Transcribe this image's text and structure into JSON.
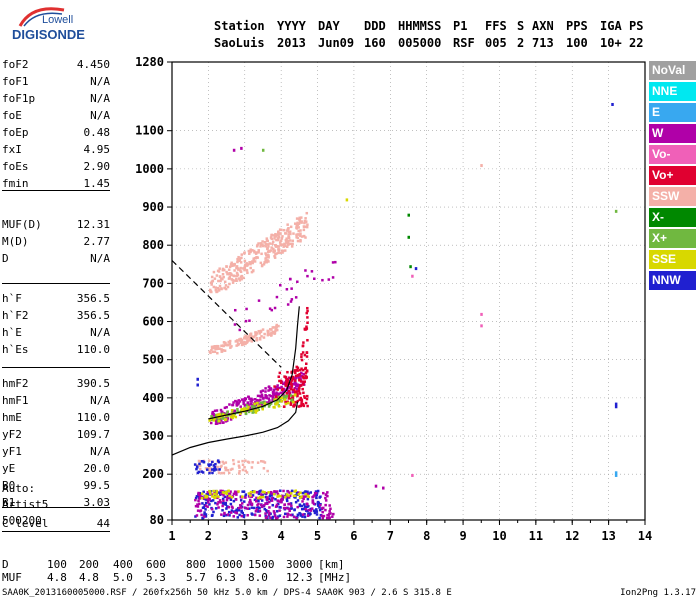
{
  "logo": {
    "line1": "Lowell",
    "line2": "DIGISONDE"
  },
  "header": {
    "cols": [
      {
        "top": "Station",
        "bottom": "SaoLuis"
      },
      {
        "top": "YYYY",
        "bottom": "2013"
      },
      {
        "top": "DAY",
        "bottom": "Jun09"
      },
      {
        "top": "DDD",
        "bottom": "160"
      },
      {
        "top": "HHMMSS",
        "bottom": "005000"
      },
      {
        "top": "P1",
        "bottom": "RSF"
      },
      {
        "top": "FFS",
        "bottom": "005"
      },
      {
        "top": "S",
        "bottom": "2"
      },
      {
        "top": "AXN",
        "bottom": "713"
      },
      {
        "top": "PPS",
        "bottom": "100"
      },
      {
        "top": "IGA",
        "bottom": "10+"
      },
      {
        "top": "PS",
        "bottom": "22"
      }
    ]
  },
  "params": [
    {
      "name": "foF2",
      "value": "4.450"
    },
    {
      "name": "foF1",
      "value": "N/A"
    },
    {
      "name": "foF1p",
      "value": "N/A"
    },
    {
      "name": "foE",
      "value": "N/A"
    },
    {
      "name": "foEp",
      "value": "0.48"
    },
    {
      "name": "fxI",
      "value": "4.95"
    },
    {
      "name": "foEs",
      "value": "2.90"
    },
    {
      "name": "fmin",
      "value": "1.45"
    },
    {
      "name": "MUF(D)",
      "value": "12.31"
    },
    {
      "name": "M(D)",
      "value": "2.77"
    },
    {
      "name": "D",
      "value": "N/A"
    },
    {
      "name": "h`F",
      "value": "356.5"
    },
    {
      "name": "h`F2",
      "value": "356.5"
    },
    {
      "name": "h`E",
      "value": "N/A"
    },
    {
      "name": "h`Es",
      "value": "110.0"
    },
    {
      "name": "hmF2",
      "value": "390.5"
    },
    {
      "name": "hmF1",
      "value": "N/A"
    },
    {
      "name": "hmE",
      "value": "110.0"
    },
    {
      "name": "yF2",
      "value": "109.7"
    },
    {
      "name": "yF1",
      "value": "N/A"
    },
    {
      "name": "yE",
      "value": "20.0"
    },
    {
      "name": "B0",
      "value": "99.5"
    },
    {
      "name": "B1",
      "value": "3.03"
    },
    {
      "name": "C-level",
      "value": "44"
    }
  ],
  "auto": {
    "label": "Auto:",
    "artist": "Artist5",
    "version": "500200"
  },
  "legend": [
    {
      "label": "NoVal",
      "color": "#a0a0a0"
    },
    {
      "label": "NNE",
      "color": "#00e8f0"
    },
    {
      "label": "E",
      "color": "#38a8f0"
    },
    {
      "label": "W",
      "color": "#b000a8"
    },
    {
      "label": "Vo-",
      "color": "#f060b8"
    },
    {
      "label": "Vo+",
      "color": "#e00030"
    },
    {
      "label": "SSW",
      "color": "#f4b0a8"
    },
    {
      "label": "X-",
      "color": "#008800"
    },
    {
      "label": "X+",
      "color": "#70b840"
    },
    {
      "label": "SSE",
      "color": "#d8d800"
    },
    {
      "label": "NNW",
      "color": "#2020d0"
    }
  ],
  "footer": {
    "d_label": "D",
    "d_values": [
      "100",
      "200",
      "400",
      "600",
      "800",
      "1000",
      "1500",
      "3000"
    ],
    "d_unit": "[km]",
    "muf_label": "MUF",
    "muf_values": [
      "4.8",
      "4.8",
      "5.0",
      "5.3",
      "5.7",
      "6.3",
      "8.0",
      "12.3"
    ],
    "muf_unit": "[MHz]",
    "bottom_line": "SAA0K_2013160005000.RSF / 260fx256h 50 kHz 5.0 km / DPS-4 SAA0K 903 / 2.6 S 315.8 E",
    "version": "Ion2Png 1.3.17"
  },
  "chart_data": {
    "type": "scatter",
    "xlim": [
      1,
      14
    ],
    "ylim": [
      80,
      1280
    ],
    "x_ticks": [
      1,
      2,
      3,
      4,
      5,
      6,
      7,
      8,
      9,
      10,
      11,
      12,
      13,
      14
    ],
    "y_ticks": [
      80,
      200,
      300,
      400,
      500,
      600,
      700,
      800,
      900,
      1000,
      1100,
      1280
    ],
    "grid": "dotted",
    "profile_curve": [
      [
        1.0,
        250
      ],
      [
        1.5,
        270
      ],
      [
        2.0,
        283
      ],
      [
        2.5,
        292
      ],
      [
        3.0,
        300
      ],
      [
        3.5,
        310
      ],
      [
        3.9,
        322
      ],
      [
        4.2,
        340
      ],
      [
        4.4,
        362
      ],
      [
        4.45,
        390
      ]
    ],
    "trace_curve": [
      [
        2.0,
        345
      ],
      [
        2.5,
        355
      ],
      [
        3.0,
        365
      ],
      [
        3.5,
        378
      ],
      [
        3.9,
        395
      ],
      [
        4.15,
        420
      ],
      [
        4.3,
        460
      ],
      [
        4.4,
        530
      ],
      [
        4.45,
        590
      ],
      [
        4.5,
        640
      ]
    ],
    "dashed_line": [
      [
        1.0,
        760
      ],
      [
        4.0,
        480
      ]
    ],
    "clusters": [
      {
        "class": "SSW",
        "color": "#f4b0a8",
        "x": [
          2.0,
          4.7
        ],
        "y": [
          680,
          900
        ],
        "density": 340,
        "dir": 1
      },
      {
        "class": "SSW",
        "color": "#f4b0a8",
        "x": [
          2.0,
          3.9
        ],
        "y": [
          520,
          600
        ],
        "density": 140,
        "dir": 1
      },
      {
        "class": "W",
        "color": "#b000a8",
        "x": [
          2.0,
          4.6
        ],
        "y": [
          335,
          480
        ],
        "density": 260,
        "dir": 1
      },
      {
        "class": "Vo+",
        "color": "#e00030",
        "x": [
          3.6,
          4.7
        ],
        "y": [
          380,
          680
        ],
        "density": 160,
        "dir": 2
      },
      {
        "class": "X+",
        "color": "#70b840",
        "x": [
          2.0,
          4.3
        ],
        "y": [
          340,
          420
        ],
        "density": 90,
        "dir": 1
      },
      {
        "class": "SSE",
        "color": "#d8d800",
        "x": [
          2.0,
          4.4
        ],
        "y": [
          340,
          420
        ],
        "density": 60,
        "dir": 1
      },
      {
        "class": "NNW",
        "color": "#2020d0",
        "x": [
          1.6,
          5.1
        ],
        "y": [
          88,
          160
        ],
        "density": 260,
        "dir": 0
      },
      {
        "class": "W",
        "color": "#b000a8",
        "x": [
          1.6,
          5.4
        ],
        "y": [
          88,
          160
        ],
        "density": 220,
        "dir": 0
      },
      {
        "class": "SSE",
        "color": "#d8d800",
        "x": [
          1.6,
          4.8
        ],
        "y": [
          140,
          160
        ],
        "density": 60,
        "dir": 0
      },
      {
        "class": "SSW",
        "color": "#f4b0a8",
        "x": [
          1.6,
          3.6
        ],
        "y": [
          205,
          240
        ],
        "density": 60,
        "dir": 0
      },
      {
        "class": "NNW",
        "color": "#2020d0",
        "x": [
          1.6,
          2.3
        ],
        "y": [
          205,
          240
        ],
        "density": 30,
        "dir": 0
      },
      {
        "class": "W",
        "color": "#b000a8",
        "x": [
          2.4,
          5.6
        ],
        "y": [
          570,
          800
        ],
        "density": 30,
        "dir": 1
      }
    ],
    "isolated_points": [
      {
        "x": 13.1,
        "y": 1170,
        "color": "#2020d0"
      },
      {
        "x": 13.2,
        "y": 890,
        "color": "#70b840"
      },
      {
        "x": 7.5,
        "y": 880,
        "color": "#008800"
      },
      {
        "x": 7.5,
        "y": 822,
        "color": "#008800"
      },
      {
        "x": 7.55,
        "y": 745,
        "color": "#008800"
      },
      {
        "x": 7.7,
        "y": 740,
        "color": "#2020d0"
      },
      {
        "x": 7.6,
        "y": 720,
        "color": "#f060b8"
      },
      {
        "x": 9.5,
        "y": 1010,
        "color": "#f4b0a8"
      },
      {
        "x": 9.5,
        "y": 620,
        "color": "#f060b8"
      },
      {
        "x": 9.5,
        "y": 590,
        "color": "#f060b8"
      },
      {
        "x": 13.2,
        "y": 385,
        "color": "#2020d0"
      },
      {
        "x": 13.2,
        "y": 378,
        "color": "#2020d0"
      },
      {
        "x": 13.2,
        "y": 205,
        "color": "#38a8f0"
      },
      {
        "x": 13.2,
        "y": 198,
        "color": "#38a8f0"
      },
      {
        "x": 7.6,
        "y": 198,
        "color": "#f060b8"
      },
      {
        "x": 6.6,
        "y": 170,
        "color": "#b000a8"
      },
      {
        "x": 6.8,
        "y": 165,
        "color": "#b000a8"
      },
      {
        "x": 2.7,
        "y": 1050,
        "color": "#b000a8"
      },
      {
        "x": 2.9,
        "y": 1055,
        "color": "#b000a8"
      },
      {
        "x": 3.5,
        "y": 1050,
        "color": "#70b840"
      },
      {
        "x": 5.8,
        "y": 920,
        "color": "#d8d800"
      },
      {
        "x": 1.7,
        "y": 450,
        "color": "#2020d0"
      },
      {
        "x": 1.7,
        "y": 435,
        "color": "#2020d0"
      }
    ]
  }
}
